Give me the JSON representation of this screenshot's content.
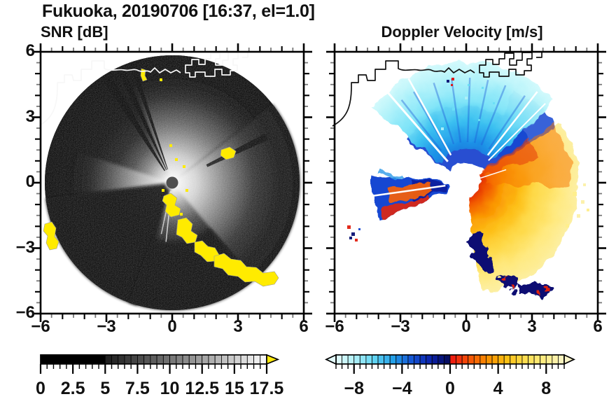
{
  "title": "Fukuoka, 20190706 [16:37, el=1.0]",
  "panels": {
    "left": {
      "subtitle": "SNR [dB]",
      "x_ticks": [
        "−6",
        "−3",
        "0",
        "3",
        "6"
      ],
      "y_ticks": [
        "6",
        "3",
        "0",
        "−3",
        "−6"
      ]
    },
    "right": {
      "subtitle": "Doppler Velocity [m/s]",
      "x_ticks": [
        "−6",
        "−3",
        "0",
        "3",
        "6"
      ]
    }
  },
  "colorbars": {
    "snr": {
      "labels": [
        "0",
        "2.5",
        "5",
        "7.5",
        "10",
        "12.5",
        "15",
        "17.5"
      ],
      "min": 0,
      "max": 17.5,
      "step": 0.5,
      "ramp_start": "#202020",
      "ramp_end": "#ffffff",
      "low_color": "#000000",
      "overflow_color": "#ffe90a"
    },
    "velocity": {
      "labels": [
        "−8",
        "−4",
        "0",
        "4",
        "8"
      ],
      "min": -9.5,
      "max": 9.5,
      "step": 0.5,
      "neg_stops": [
        "#e4fcfc",
        "#aff0f8",
        "#62d6f4",
        "#24a0e8",
        "#1554d4",
        "#0c22aa",
        "#050a55"
      ],
      "pos_stops": [
        "#ee1410",
        "#f65207",
        "#fa9000",
        "#fcc114",
        "#fedf52",
        "#ffee85",
        "#f9f4c8"
      ]
    }
  },
  "chart_data": [
    {
      "type": "heatmap",
      "title": "SNR [dB]",
      "x_range": [
        -6,
        6
      ],
      "y_range": [
        -6,
        6
      ],
      "x_ticks": [
        -6,
        -3,
        0,
        3,
        6
      ],
      "y_ticks": [
        -6,
        -3,
        0,
        3,
        6
      ],
      "minor_tick_step": 0.5,
      "radar_center": [
        0,
        0
      ],
      "scan_radius": 5.8,
      "colorbar": {
        "range": [
          0,
          17.5
        ],
        "cell_step": 0.5,
        "ticks": [
          0,
          2.5,
          5,
          7.5,
          10,
          12.5,
          15,
          17.5
        ],
        "colormap": "black-to-white grayscale, yellow overflow arrow"
      },
      "features": "Dark PPI disk with bright SNR glow at radar origin; brightest sectors to N and E-SE; blocked black sectors to SW/W and narrow dark rays to NNW and ENE; yellow high-SNR clutter chain running SE from center, patch at far W edge; white coastline overlay along top"
    },
    {
      "type": "heatmap",
      "title": "Doppler Velocity [m/s]",
      "x_range": [
        -6,
        6
      ],
      "y_range": [
        -6,
        6
      ],
      "x_ticks": [
        -6,
        -3,
        0,
        3,
        6
      ],
      "y_ticks": [
        -6,
        -3,
        0,
        3,
        6
      ],
      "minor_tick_step": 0.5,
      "radar_center": [
        0,
        0
      ],
      "colorbar": {
        "range": [
          -9.5,
          9.5
        ],
        "cell_step": 0.5,
        "ticks": [
          -8,
          -4,
          0,
          4,
          8
        ],
        "colormap": "pale-cyan to navy for negative, red-orange-yellow to cream for positive, arrows both ends"
      },
      "features": "Cyan/blue fan to the N (flow toward radar), orange-yellow fan to the E-SE (flow away), blue wedge with embedded orange-red to the W, dark-navy aliasing rim along SW edge of warm fan, red/navy specks far W, black coastline overlay along top"
    }
  ]
}
